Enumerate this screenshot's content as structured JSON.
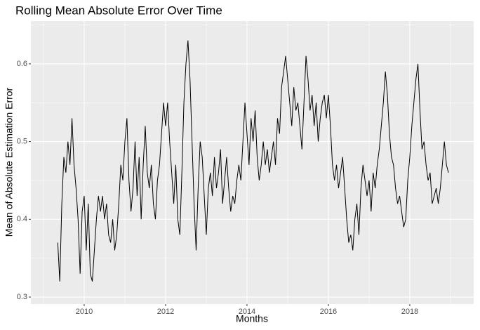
{
  "chart_data": {
    "type": "line",
    "title": "Rolling Mean Absolute Error Over Time",
    "x_label": "Months",
    "y_label": "Mean of Absolute Estimation Error",
    "xlim": [
      2008.69,
      2019.57
    ],
    "ylim": [
      0.291,
      0.655
    ],
    "xticks": [
      2010,
      2012,
      2014,
      2016,
      2018
    ],
    "yticks": [
      0.3,
      0.4,
      0.5,
      0.6
    ],
    "x_minor_ticks": [
      2009,
      2011,
      2013,
      2015,
      2017,
      2019
    ],
    "y_minor_ticks": [
      0.35,
      0.45,
      0.55,
      0.65
    ],
    "grid": true,
    "series": [
      {
        "color": "#000000",
        "x": [
          2009.35,
          2009.4,
          2009.45,
          2009.5,
          2009.55,
          2009.6,
          2009.65,
          2009.7,
          2009.75,
          2009.8,
          2009.85,
          2009.9,
          2009.95,
          2010.0,
          2010.05,
          2010.1,
          2010.15,
          2010.2,
          2010.25,
          2010.3,
          2010.35,
          2010.4,
          2010.45,
          2010.5,
          2010.55,
          2010.6,
          2010.65,
          2010.7,
          2010.75,
          2010.8,
          2010.85,
          2010.9,
          2010.95,
          2011.0,
          2011.05,
          2011.1,
          2011.15,
          2011.2,
          2011.25,
          2011.3,
          2011.35,
          2011.4,
          2011.45,
          2011.5,
          2011.55,
          2011.6,
          2011.65,
          2011.7,
          2011.75,
          2011.8,
          2011.85,
          2011.9,
          2011.95,
          2012.0,
          2012.05,
          2012.1,
          2012.15,
          2012.2,
          2012.25,
          2012.3,
          2012.35,
          2012.4,
          2012.45,
          2012.5,
          2012.55,
          2012.6,
          2012.65,
          2012.7,
          2012.75,
          2012.8,
          2012.85,
          2012.9,
          2012.95,
          2013.0,
          2013.05,
          2013.1,
          2013.15,
          2013.2,
          2013.25,
          2013.3,
          2013.35,
          2013.4,
          2013.45,
          2013.5,
          2013.55,
          2013.6,
          2013.65,
          2013.7,
          2013.75,
          2013.8,
          2013.85,
          2013.9,
          2013.95,
          2014.0,
          2014.05,
          2014.1,
          2014.15,
          2014.2,
          2014.25,
          2014.3,
          2014.35,
          2014.4,
          2014.45,
          2014.5,
          2014.55,
          2014.6,
          2014.65,
          2014.7,
          2014.75,
          2014.8,
          2014.85,
          2014.9,
          2014.95,
          2015.0,
          2015.05,
          2015.1,
          2015.15,
          2015.2,
          2015.25,
          2015.3,
          2015.35,
          2015.4,
          2015.45,
          2015.5,
          2015.55,
          2015.6,
          2015.65,
          2015.7,
          2015.75,
          2015.8,
          2015.85,
          2015.9,
          2015.95,
          2016.0,
          2016.05,
          2016.1,
          2016.15,
          2016.2,
          2016.25,
          2016.3,
          2016.35,
          2016.4,
          2016.45,
          2016.5,
          2016.55,
          2016.6,
          2016.65,
          2016.7,
          2016.75,
          2016.8,
          2016.85,
          2016.9,
          2016.95,
          2017.0,
          2017.05,
          2017.1,
          2017.15,
          2017.2,
          2017.25,
          2017.3,
          2017.35,
          2017.4,
          2017.45,
          2017.5,
          2017.55,
          2017.6,
          2017.65,
          2017.7,
          2017.75,
          2017.8,
          2017.85,
          2017.9,
          2017.95,
          2018.0,
          2018.05,
          2018.1,
          2018.15,
          2018.2,
          2018.25,
          2018.3,
          2018.35,
          2018.4,
          2018.45,
          2018.5,
          2018.55,
          2018.6,
          2018.65,
          2018.7,
          2018.75,
          2018.8,
          2018.85,
          2018.9,
          2018.95
        ],
        "values": [
          0.37,
          0.32,
          0.42,
          0.48,
          0.46,
          0.5,
          0.47,
          0.53,
          0.47,
          0.44,
          0.4,
          0.33,
          0.41,
          0.43,
          0.36,
          0.42,
          0.33,
          0.32,
          0.36,
          0.4,
          0.43,
          0.41,
          0.43,
          0.4,
          0.42,
          0.38,
          0.37,
          0.4,
          0.36,
          0.38,
          0.42,
          0.47,
          0.45,
          0.5,
          0.53,
          0.45,
          0.41,
          0.44,
          0.5,
          0.43,
          0.48,
          0.4,
          0.47,
          0.52,
          0.46,
          0.44,
          0.47,
          0.42,
          0.4,
          0.45,
          0.47,
          0.51,
          0.55,
          0.52,
          0.55,
          0.5,
          0.46,
          0.42,
          0.47,
          0.4,
          0.38,
          0.46,
          0.55,
          0.6,
          0.63,
          0.58,
          0.5,
          0.42,
          0.36,
          0.44,
          0.5,
          0.48,
          0.43,
          0.38,
          0.44,
          0.46,
          0.43,
          0.48,
          0.44,
          0.46,
          0.49,
          0.42,
          0.45,
          0.48,
          0.44,
          0.41,
          0.43,
          0.42,
          0.45,
          0.47,
          0.45,
          0.5,
          0.55,
          0.51,
          0.47,
          0.53,
          0.5,
          0.54,
          0.48,
          0.45,
          0.47,
          0.5,
          0.47,
          0.49,
          0.46,
          0.48,
          0.5,
          0.47,
          0.53,
          0.51,
          0.57,
          0.59,
          0.61,
          0.58,
          0.55,
          0.52,
          0.57,
          0.54,
          0.55,
          0.52,
          0.49,
          0.55,
          0.61,
          0.58,
          0.54,
          0.56,
          0.52,
          0.55,
          0.5,
          0.53,
          0.55,
          0.56,
          0.53,
          0.56,
          0.52,
          0.47,
          0.45,
          0.47,
          0.44,
          0.46,
          0.48,
          0.44,
          0.4,
          0.37,
          0.38,
          0.36,
          0.4,
          0.42,
          0.38,
          0.44,
          0.47,
          0.45,
          0.43,
          0.45,
          0.41,
          0.46,
          0.44,
          0.47,
          0.49,
          0.52,
          0.55,
          0.59,
          0.56,
          0.51,
          0.48,
          0.47,
          0.44,
          0.42,
          0.43,
          0.41,
          0.39,
          0.4,
          0.45,
          0.48,
          0.52,
          0.55,
          0.58,
          0.6,
          0.54,
          0.49,
          0.5,
          0.47,
          0.45,
          0.46,
          0.42,
          0.43,
          0.44,
          0.42,
          0.44,
          0.47,
          0.5,
          0.47,
          0.46
        ]
      }
    ]
  }
}
